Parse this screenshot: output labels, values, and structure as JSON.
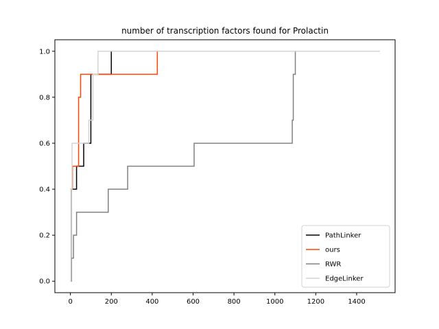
{
  "chart_data": {
    "type": "line",
    "title": "number of transcription factors found for Prolactin",
    "xlabel": "",
    "ylabel": "",
    "xlim": [
      -76,
      1588
    ],
    "ylim": [
      -0.05,
      1.05
    ],
    "xticks": [
      0,
      200,
      400,
      600,
      800,
      1000,
      1200,
      1400
    ],
    "yticks": [
      0.0,
      0.2,
      0.4,
      0.6,
      0.8,
      1.0
    ],
    "xtick_labels": [
      "0",
      "200",
      "400",
      "600",
      "800",
      "1000",
      "1200",
      "1400"
    ],
    "ytick_labels": [
      "0.0",
      "0.2",
      "0.4",
      "0.6",
      "0.8",
      "1.0"
    ],
    "grid": false,
    "legend_position": "lower-right",
    "series": [
      {
        "name": "PathLinker",
        "color": "#000000",
        "x": [
          0,
          3,
          18,
          30,
          60,
          65,
          95,
          100,
          200,
          1512
        ],
        "y": [
          0.0,
          0.4,
          0.4,
          0.5,
          0.5,
          0.6,
          0.6,
          0.9,
          1.0,
          1.0
        ]
      },
      {
        "name": "ours",
        "color": "#ff4500",
        "x": [
          0,
          2,
          10,
          30,
          40,
          50,
          420,
          425,
          1512
        ],
        "y": [
          0.0,
          0.4,
          0.5,
          0.5,
          0.8,
          0.9,
          0.9,
          1.0,
          1.0
        ]
      },
      {
        "name": "RWR",
        "color": "#808080",
        "x": [
          0,
          5,
          15,
          25,
          30,
          180,
          185,
          275,
          280,
          600,
          605,
          1080,
          1085,
          1090,
          1100,
          1512
        ],
        "y": [
          0.0,
          0.1,
          0.2,
          0.2,
          0.3,
          0.3,
          0.4,
          0.4,
          0.5,
          0.5,
          0.6,
          0.6,
          0.7,
          0.9,
          1.0,
          1.0
        ]
      },
      {
        "name": "EdgeLinker",
        "color": "#d3d3d3",
        "x": [
          0,
          2,
          8,
          30,
          60,
          85,
          90,
          95,
          110,
          135,
          1512
        ],
        "y": [
          0.0,
          0.4,
          0.6,
          0.6,
          0.6,
          0.6,
          0.7,
          0.7,
          0.9,
          1.0,
          1.0
        ]
      }
    ]
  }
}
